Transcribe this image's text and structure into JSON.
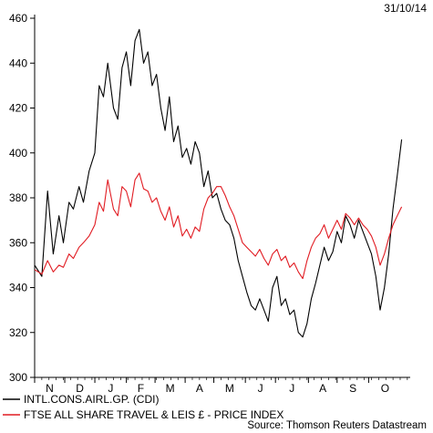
{
  "date_stamp": "31/10/14",
  "source": "Source: Thomson Reuters Datastream",
  "colors": {
    "series1": "#000000",
    "series2": "#e11b22",
    "axis": "#000000"
  },
  "chart_data": {
    "type": "line",
    "ylim": [
      300,
      460
    ],
    "yticks": [
      300,
      320,
      340,
      360,
      380,
      400,
      420,
      440,
      460
    ],
    "xlim": [
      0,
      262
    ],
    "grid": false,
    "legend_position": "bottom-left",
    "months": [
      {
        "label": "N",
        "start": 0,
        "end": 21
      },
      {
        "label": "D",
        "start": 21,
        "end": 42
      },
      {
        "label": "J",
        "start": 42,
        "end": 64
      },
      {
        "label": "F",
        "start": 64,
        "end": 84
      },
      {
        "label": "M",
        "start": 84,
        "end": 105
      },
      {
        "label": "A",
        "start": 105,
        "end": 125
      },
      {
        "label": "M",
        "start": 125,
        "end": 147
      },
      {
        "label": "J",
        "start": 147,
        "end": 168
      },
      {
        "label": "J",
        "start": 168,
        "end": 191
      },
      {
        "label": "A",
        "start": 191,
        "end": 211
      },
      {
        "label": "S",
        "start": 211,
        "end": 233
      },
      {
        "label": "O",
        "start": 233,
        "end": 256
      }
    ],
    "series": [
      {
        "name": "INTL.CONS.AIRL.GP. (CDI)",
        "color": "#000000",
        "x": [
          0,
          5,
          9,
          13,
          17,
          20,
          24,
          27,
          31,
          34,
          38,
          42,
          45,
          48,
          51,
          55,
          58,
          61,
          64,
          67,
          70,
          73,
          76,
          79,
          82,
          85,
          88,
          91,
          94,
          97,
          100,
          103,
          106,
          109,
          112,
          115,
          118,
          121,
          124,
          127,
          130,
          133,
          136,
          139,
          142,
          145,
          148,
          151,
          154,
          157,
          160,
          163,
          166,
          169,
          172,
          175,
          178,
          181,
          184,
          187,
          190,
          193,
          196,
          199,
          202,
          205,
          208,
          211,
          214,
          217,
          220,
          223,
          226,
          229,
          232,
          235,
          238,
          241,
          244,
          247,
          250,
          253,
          256
        ],
        "values": [
          350,
          345,
          383,
          355,
          372,
          360,
          378,
          375,
          385,
          378,
          392,
          400,
          430,
          425,
          440,
          420,
          415,
          438,
          445,
          430,
          450,
          455,
          440,
          445,
          430,
          435,
          420,
          410,
          425,
          405,
          412,
          398,
          402,
          395,
          405,
          400,
          385,
          392,
          380,
          382,
          375,
          370,
          368,
          362,
          352,
          345,
          338,
          332,
          330,
          335,
          330,
          325,
          340,
          345,
          332,
          335,
          328,
          330,
          320,
          318,
          324,
          335,
          342,
          350,
          358,
          352,
          356,
          365,
          360,
          372,
          368,
          362,
          370,
          365,
          360,
          355,
          345,
          330,
          340,
          355,
          375,
          390,
          406
        ]
      },
      {
        "name": "FTSE ALL SHARE TRAVEL & LEIS £ - PRICE INDEX",
        "color": "#e11b22",
        "x": [
          0,
          5,
          9,
          13,
          17,
          20,
          24,
          27,
          31,
          34,
          38,
          42,
          45,
          48,
          51,
          55,
          58,
          61,
          64,
          67,
          70,
          73,
          76,
          79,
          82,
          85,
          88,
          91,
          94,
          97,
          100,
          103,
          106,
          109,
          112,
          115,
          118,
          121,
          124,
          127,
          130,
          133,
          136,
          139,
          142,
          145,
          148,
          151,
          154,
          157,
          160,
          163,
          166,
          169,
          172,
          175,
          178,
          181,
          184,
          187,
          190,
          193,
          196,
          199,
          202,
          205,
          208,
          211,
          214,
          217,
          220,
          223,
          226,
          229,
          232,
          235,
          238,
          241,
          244,
          247,
          250,
          253,
          256
        ],
        "values": [
          348,
          346,
          352,
          347,
          350,
          349,
          355,
          353,
          358,
          360,
          363,
          368,
          378,
          374,
          388,
          375,
          372,
          385,
          383,
          376,
          388,
          391,
          384,
          383,
          378,
          380,
          374,
          370,
          376,
          367,
          372,
          363,
          366,
          362,
          367,
          365,
          375,
          380,
          382,
          385,
          385,
          381,
          376,
          372,
          366,
          360,
          358,
          356,
          354,
          357,
          353,
          350,
          355,
          357,
          352,
          354,
          349,
          351,
          347,
          344,
          352,
          358,
          362,
          364,
          368,
          362,
          366,
          370,
          366,
          373,
          371,
          368,
          371,
          368,
          366,
          363,
          358,
          350,
          355,
          362,
          368,
          372,
          376
        ]
      }
    ]
  }
}
